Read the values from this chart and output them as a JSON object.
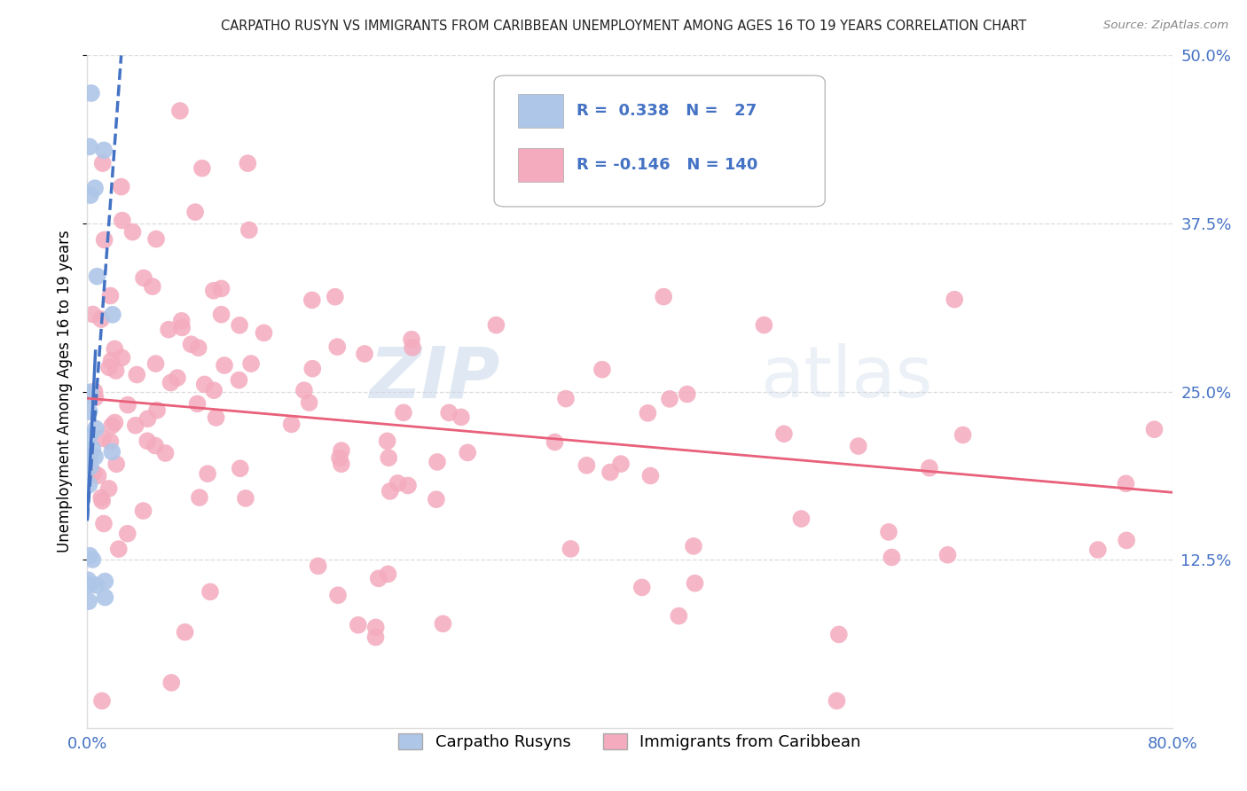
{
  "title": "CARPATHO RUSYN VS IMMIGRANTS FROM CARIBBEAN UNEMPLOYMENT AMONG AGES 16 TO 19 YEARS CORRELATION CHART",
  "source": "Source: ZipAtlas.com",
  "ylabel": "Unemployment Among Ages 16 to 19 years",
  "xlim": [
    0,
    0.8
  ],
  "ylim": [
    0,
    0.5
  ],
  "yticks_right": [
    0.125,
    0.25,
    0.375,
    0.5
  ],
  "yticklabels_right": [
    "12.5%",
    "25.0%",
    "37.5%",
    "50.0%"
  ],
  "legend_blue_r": "0.338",
  "legend_blue_n": "27",
  "legend_pink_r": "-0.146",
  "legend_pink_n": "140",
  "blue_scatter_color": "#AEC6E8",
  "pink_scatter_color": "#F4ABBE",
  "blue_line_color": "#4472C4",
  "pink_line_color": "#E8607A",
  "tick_color": "#4472C4",
  "grid_color": "#DDDDDD",
  "title_color": "#222222",
  "source_color": "#888888",
  "watermark_color": "#C8D8EA",
  "blue_trend_start_x": 0.0,
  "blue_trend_start_y": 0.155,
  "blue_trend_end_x": 0.025,
  "blue_trend_end_y": 0.5,
  "pink_trend_start_x": 0.0,
  "pink_trend_start_y": 0.245,
  "pink_trend_end_x": 0.8,
  "pink_trend_end_y": 0.175,
  "seed": 123
}
